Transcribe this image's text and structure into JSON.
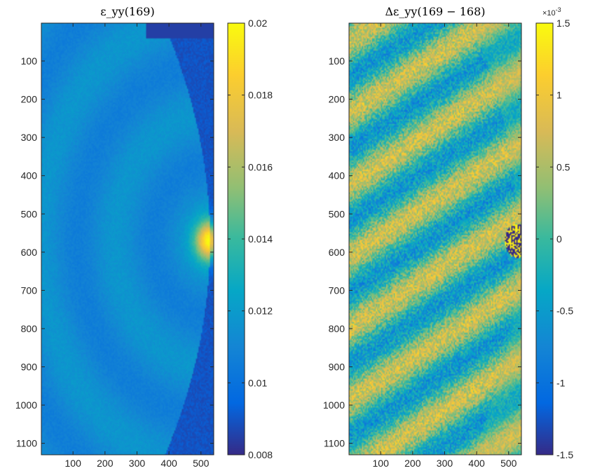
{
  "chart_data": [
    {
      "type": "heatmap",
      "title": "ε_yy(169)",
      "xlabel": "",
      "ylabel": "",
      "xlim": [
        1,
        540
      ],
      "ylim": [
        1,
        1130
      ],
      "y_reversed": true,
      "xticks": [
        100,
        200,
        300,
        400,
        500
      ],
      "yticks": [
        100,
        200,
        300,
        400,
        500,
        600,
        700,
        800,
        900,
        1000,
        1100
      ],
      "colormap": "parula",
      "colorbar": {
        "range": [
          0.008,
          0.02
        ],
        "ticks": [
          "0.008",
          "0.01",
          "0.012",
          "0.014",
          "0.016",
          "0.018",
          "0.02"
        ],
        "tick_values": [
          0.008,
          0.01,
          0.012,
          0.014,
          0.016,
          0.018,
          0.02
        ],
        "exponent": ""
      },
      "field": {
        "background": 0.0112,
        "stripe_amp": 0.0009,
        "edge_boundary": "curved right edge, low strain (~0.009) beyond",
        "hotspot": {
          "x": 530,
          "y": 570,
          "value": 0.02
        }
      },
      "colors": {
        "low": "#352a87",
        "mid": "#0fa6c8",
        "high": "#f9fb0e"
      }
    },
    {
      "type": "heatmap",
      "title": "Δε_yy(169 − 168)",
      "xlabel": "",
      "ylabel": "",
      "xlim": [
        1,
        540
      ],
      "ylim": [
        1,
        1130
      ],
      "y_reversed": true,
      "xticks": [
        100,
        200,
        300,
        400,
        500
      ],
      "yticks": [
        100,
        200,
        300,
        400,
        500,
        600,
        700,
        800,
        900,
        1000,
        1100
      ],
      "colormap": "parula",
      "colorbar": {
        "range": [
          -1.5,
          1.5
        ],
        "ticks": [
          "-1.5",
          "-1",
          "-0.5",
          "0",
          "0.5",
          "1",
          "1.5"
        ],
        "tick_values": [
          -1.5,
          -1,
          -0.5,
          0,
          0.5,
          1,
          1.5
        ],
        "exponent_base": "×10",
        "exponent_power": "-3"
      },
      "field": {
        "background": 0.1,
        "stripe_amp": 0.65,
        "stripe_direction": "diagonal, descending left to right",
        "hotspot": {
          "x": 530,
          "y": 570,
          "value": -1.5
        }
      },
      "colors": {
        "low": "#352a87",
        "mid": "#0fa6c8",
        "high": "#f9fb0e"
      }
    }
  ]
}
